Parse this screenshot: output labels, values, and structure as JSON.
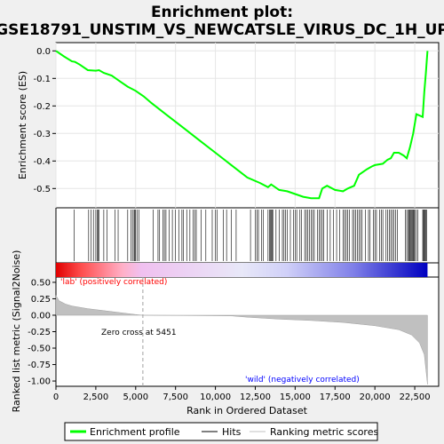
{
  "chart_data": {
    "type": "line",
    "title_line1": "Enrichment plot:",
    "title_line2": "GSE18791_UNSTIM_VS_NEWCATSLE_VIRUS_DC_1H_UP",
    "ylabel_top": "Enrichment score (ES)",
    "ylabel_bottom": "Ranked list metric (Signal2Noise)",
    "xlabel": "Rank in Ordered Dataset",
    "xlim": [
      0,
      24000
    ],
    "x_ticks": [
      0,
      2500,
      5000,
      7500,
      10000,
      12500,
      15000,
      17500,
      20000,
      22500
    ],
    "x_tick_labels": [
      "0",
      "2,500",
      "5,000",
      "7,500",
      "10,000",
      "12,500",
      "15,000",
      "17,500",
      "20,000",
      "22,500"
    ],
    "es_ylim": [
      -0.57,
      0.03
    ],
    "es_ticks": [
      0.0,
      -0.1,
      -0.2,
      -0.3,
      -0.4,
      -0.5
    ],
    "es_tick_labels": [
      "0.0",
      "-0.1",
      "-0.2",
      "-0.3",
      "-0.4",
      "-0.5"
    ],
    "metric_ylim": [
      -1.08,
      0.58
    ],
    "metric_ticks": [
      0.5,
      0.25,
      0.0,
      -0.25,
      -0.5,
      -0.75,
      -1.0
    ],
    "metric_tick_labels": [
      "0.50",
      "0.25",
      "0.00",
      "-0.25",
      "-0.50",
      "-0.75",
      "-1.00"
    ],
    "enrichment_profile": [
      [
        0,
        0.0
      ],
      [
        500,
        -0.02
      ],
      [
        1000,
        -0.038
      ],
      [
        1200,
        -0.04
      ],
      [
        1500,
        -0.05
      ],
      [
        2000,
        -0.07
      ],
      [
        2500,
        -0.072
      ],
      [
        2700,
        -0.07
      ],
      [
        3000,
        -0.08
      ],
      [
        3500,
        -0.09
      ],
      [
        4000,
        -0.11
      ],
      [
        4500,
        -0.13
      ],
      [
        5000,
        -0.145
      ],
      [
        5500,
        -0.165
      ],
      [
        6000,
        -0.19
      ],
      [
        7000,
        -0.235
      ],
      [
        8000,
        -0.28
      ],
      [
        9000,
        -0.325
      ],
      [
        10000,
        -0.37
      ],
      [
        11000,
        -0.415
      ],
      [
        12000,
        -0.46
      ],
      [
        12800,
        -0.48
      ],
      [
        13300,
        -0.495
      ],
      [
        13500,
        -0.485
      ],
      [
        14000,
        -0.505
      ],
      [
        14500,
        -0.51
      ],
      [
        15000,
        -0.52
      ],
      [
        15500,
        -0.53
      ],
      [
        16000,
        -0.535
      ],
      [
        16500,
        -0.535
      ],
      [
        16700,
        -0.5
      ],
      [
        17000,
        -0.49
      ],
      [
        17500,
        -0.505
      ],
      [
        18000,
        -0.51
      ],
      [
        18300,
        -0.5
      ],
      [
        18700,
        -0.49
      ],
      [
        19000,
        -0.45
      ],
      [
        19500,
        -0.43
      ],
      [
        19800,
        -0.42
      ],
      [
        20000,
        -0.415
      ],
      [
        20500,
        -0.41
      ],
      [
        20800,
        -0.395
      ],
      [
        21000,
        -0.39
      ],
      [
        21200,
        -0.37
      ],
      [
        21500,
        -0.37
      ],
      [
        21800,
        -0.38
      ],
      [
        22000,
        -0.39
      ],
      [
        22200,
        -0.35
      ],
      [
        22400,
        -0.3
      ],
      [
        22600,
        -0.23
      ],
      [
        23000,
        -0.24
      ],
      [
        23100,
        -0.15
      ],
      [
        23200,
        -0.08
      ],
      [
        23300,
        0.0
      ]
    ],
    "hits": [
      1150,
      2050,
      2200,
      2350,
      2500,
      2600,
      2650,
      2700,
      3000,
      3200,
      3700,
      3900,
      4500,
      4700,
      4800,
      4900,
      4950,
      5000,
      5100,
      5200,
      6100,
      6400,
      6500,
      6700,
      6800,
      6900,
      7100,
      7300,
      7500,
      7700,
      7900,
      8000,
      8200,
      8400,
      8600,
      8700,
      8800,
      9100,
      9400,
      9800,
      10000,
      10100,
      10500,
      10700,
      11000,
      11300,
      12200,
      12500,
      12600,
      12700,
      12900,
      13000,
      13300,
      13400,
      13450,
      13500,
      13550,
      13600,
      13800,
      14000,
      14200,
      14300,
      14400,
      14500,
      14700,
      14900,
      15000,
      15100,
      15300,
      15400,
      15600,
      15700,
      15800,
      15900,
      16000,
      16100,
      16200,
      16400,
      16500,
      16600,
      16700,
      16800,
      17000,
      17200,
      17400,
      17600,
      17800,
      18000,
      18100,
      18200,
      18300,
      18400,
      18600,
      18700,
      18800,
      18900,
      19000,
      19100,
      19200,
      19400,
      19600,
      19700,
      19900,
      20000,
      20100,
      20300,
      20400,
      20500,
      20700,
      20800,
      20900,
      21000,
      21100,
      21200,
      21300,
      21400,
      21900,
      22000,
      22100,
      22150,
      22200,
      22250,
      22300,
      22350,
      22400,
      22450,
      22500,
      22600,
      22700,
      23000,
      23050,
      23100,
      23150,
      23200,
      23250
    ],
    "metric_profile": [
      [
        0,
        0.3
      ],
      [
        200,
        0.22
      ],
      [
        600,
        0.17
      ],
      [
        1000,
        0.14
      ],
      [
        2000,
        0.1
      ],
      [
        3000,
        0.07
      ],
      [
        4000,
        0.04
      ],
      [
        5000,
        0.01
      ],
      [
        5451,
        0.0
      ],
      [
        8000,
        -0.005
      ],
      [
        11000,
        -0.01
      ],
      [
        12000,
        -0.03
      ],
      [
        14000,
        -0.06
      ],
      [
        16000,
        -0.08
      ],
      [
        18000,
        -0.11
      ],
      [
        20000,
        -0.16
      ],
      [
        21500,
        -0.22
      ],
      [
        22300,
        -0.3
      ],
      [
        22800,
        -0.42
      ],
      [
        23100,
        -0.6
      ],
      [
        23300,
        -1.05
      ]
    ],
    "zero_cross": 5451,
    "zero_cross_label": "Zero cross at 5451",
    "pos_label": "'lab' (positively correlated)",
    "neg_label": "'wild' (negatively correlated)",
    "legend": [
      "Enrichment profile",
      "Hits",
      "Ranking metric scores"
    ],
    "colors": {
      "profile": "#00ff00",
      "hits": "#000000",
      "metric": "#c0c0c0",
      "pos_text": "#ff0000",
      "neg_text": "#0000ff"
    }
  }
}
